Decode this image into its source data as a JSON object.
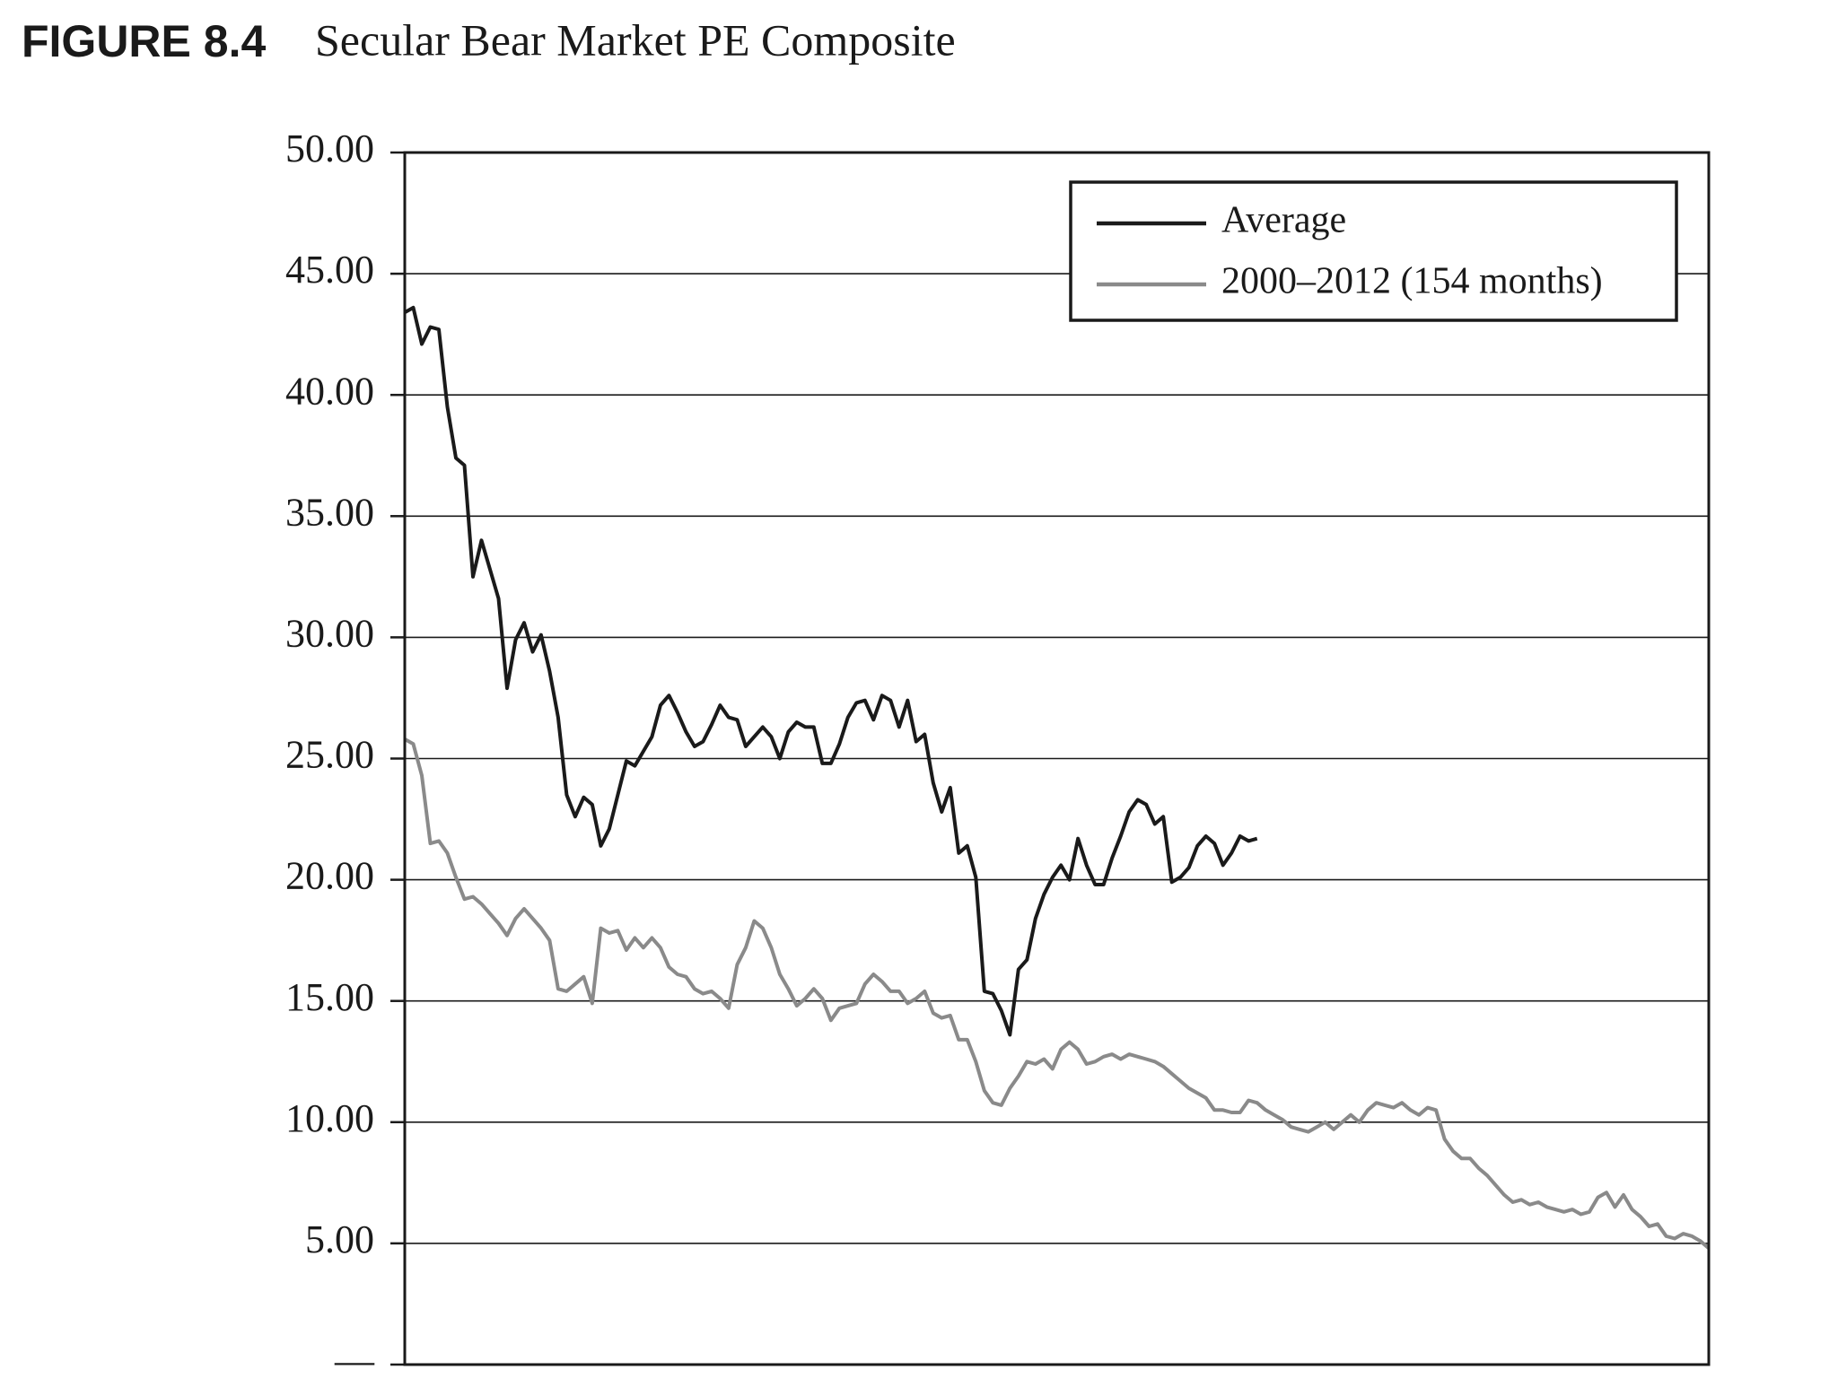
{
  "chart_data": {
    "type": "line",
    "figure_label": "FIGURE 8.4",
    "title": "Secular Bear Market PE Composite",
    "ylim": [
      0,
      50
    ],
    "yticks": [
      {
        "value": 0,
        "label": "—"
      },
      {
        "value": 5,
        "label": "5.00"
      },
      {
        "value": 10,
        "label": "10.00"
      },
      {
        "value": 15,
        "label": "15.00"
      },
      {
        "value": 20,
        "label": "20.00"
      },
      {
        "value": 25,
        "label": "25.00"
      },
      {
        "value": 30,
        "label": "30.00"
      },
      {
        "value": 35,
        "label": "35.00"
      },
      {
        "value": 40,
        "label": "40.00"
      },
      {
        "value": 45,
        "label": "45.00"
      },
      {
        "value": 50,
        "label": "50.00"
      }
    ],
    "grid": true,
    "legend": "upper right",
    "series": [
      {
        "name": "Average",
        "color": "#1a1a1a",
        "values": [
          43.4,
          43.6,
          42.1,
          42.8,
          42.7,
          39.5,
          37.4,
          37.1,
          32.5,
          34.0,
          32.8,
          31.6,
          27.9,
          29.9,
          30.6,
          29.4,
          30.1,
          28.6,
          26.7,
          23.5,
          22.6,
          23.4,
          23.1,
          21.4,
          22.1,
          23.5,
          24.9,
          24.7,
          25.3,
          25.9,
          27.2,
          27.6,
          26.9,
          26.1,
          25.5,
          25.7,
          26.4,
          27.2,
          26.7,
          26.6,
          25.5,
          25.9,
          26.3,
          25.9,
          25.0,
          26.1,
          26.5,
          26.3,
          26.3,
          24.8,
          24.8,
          25.6,
          26.7,
          27.3,
          27.4,
          26.6,
          27.6,
          27.4,
          26.3,
          27.4,
          25.7,
          26.0,
          24.0,
          22.8,
          23.8,
          21.1,
          21.4,
          20.1,
          15.4,
          15.3,
          14.6,
          13.6,
          16.3,
          16.7,
          18.4,
          19.4,
          20.1,
          20.6,
          20.0,
          21.7,
          20.6,
          19.8,
          19.8,
          20.9,
          21.8,
          22.8,
          23.3,
          23.1,
          22.3,
          22.6,
          19.9,
          20.1,
          20.5,
          21.4,
          21.8,
          21.5,
          20.6,
          21.1,
          21.8,
          21.6,
          21.7
        ]
      },
      {
        "name": "2000–2012 (154 months)",
        "color": "#8a8a8a",
        "values": [
          25.8,
          25.6,
          24.3,
          21.5,
          21.6,
          21.1,
          20.1,
          19.2,
          19.3,
          19.0,
          18.6,
          18.2,
          17.7,
          18.4,
          18.8,
          18.4,
          18.0,
          17.5,
          15.5,
          15.4,
          15.7,
          16.0,
          14.9,
          18.0,
          17.8,
          17.9,
          17.1,
          17.6,
          17.2,
          17.6,
          17.2,
          16.4,
          16.1,
          16.0,
          15.5,
          15.3,
          15.4,
          15.1,
          14.7,
          16.5,
          17.2,
          18.3,
          18.0,
          17.2,
          16.1,
          15.5,
          14.8,
          15.1,
          15.5,
          15.1,
          14.2,
          14.7,
          14.8,
          14.9,
          15.7,
          16.1,
          15.8,
          15.4,
          15.4,
          14.9,
          15.1,
          15.4,
          14.5,
          14.3,
          14.4,
          13.4,
          13.4,
          12.5,
          11.3,
          10.8,
          10.7,
          11.4,
          11.9,
          12.5,
          12.4,
          12.6,
          12.2,
          13.0,
          13.3,
          13.0,
          12.4,
          12.5,
          12.7,
          12.8,
          12.6,
          12.8,
          12.7,
          12.6,
          12.5,
          12.3,
          12.0,
          11.7,
          11.4,
          11.2,
          11.0,
          10.5,
          10.5,
          10.4,
          10.4,
          10.9,
          10.8,
          10.5,
          10.3,
          10.1,
          9.8,
          9.7,
          9.6,
          9.8,
          10.0,
          9.7,
          10.0,
          10.3,
          10.0,
          10.5,
          10.8,
          10.7,
          10.6,
          10.8,
          10.5,
          10.3,
          10.6,
          10.5,
          9.3,
          8.8,
          8.5,
          8.5,
          8.1,
          7.8,
          7.4,
          7.0,
          6.7,
          6.8,
          6.6,
          6.7,
          6.5,
          6.4,
          6.3,
          6.4,
          6.2,
          6.3,
          6.9,
          7.1,
          6.5,
          7.0,
          6.4,
          6.1,
          5.7,
          5.8,
          5.3,
          5.2,
          5.4,
          5.3,
          5.1,
          4.8
        ]
      }
    ]
  }
}
